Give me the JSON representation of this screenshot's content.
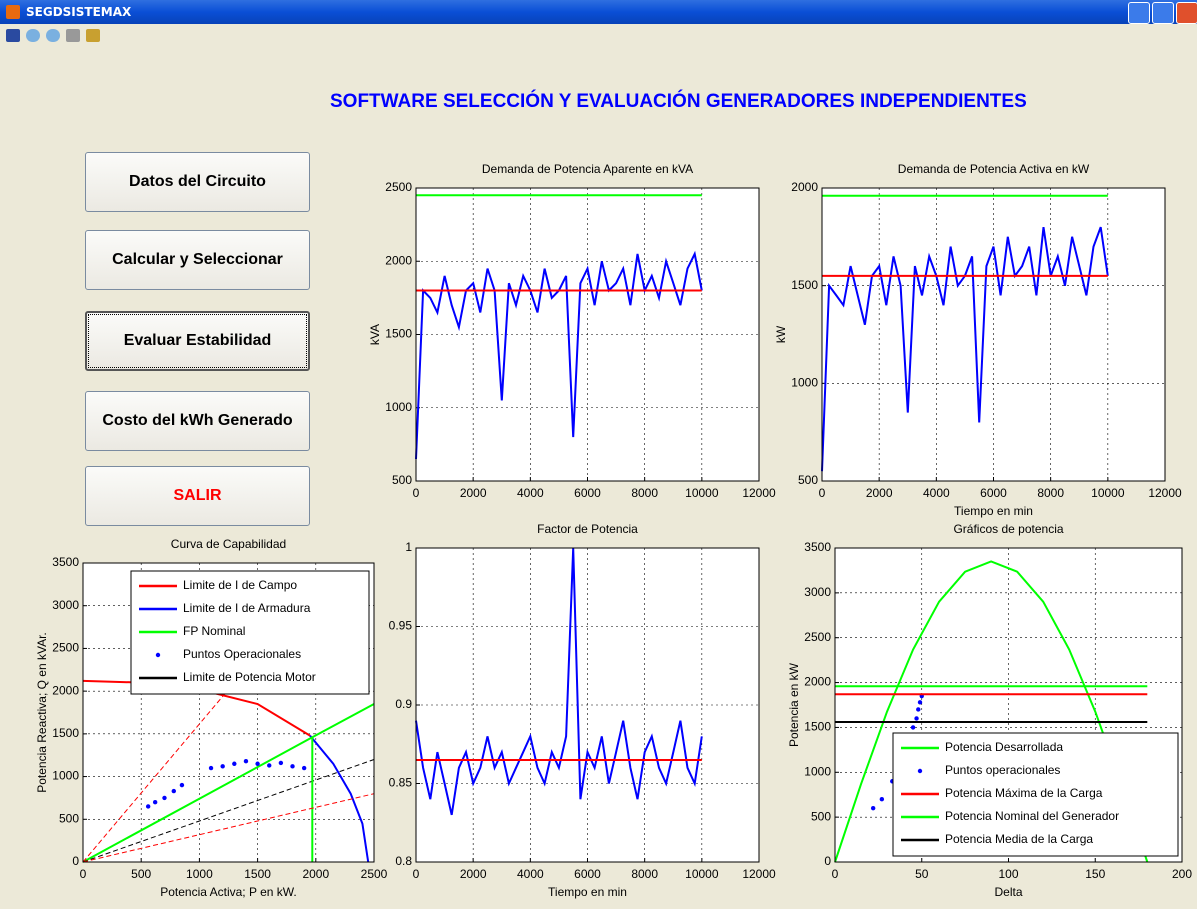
{
  "window": {
    "title": "SEGDSISTEMAX"
  },
  "title": "SOFTWARE SELECCIÓN Y EVALUACIÓN GENERADORES INDEPENDIENTES",
  "buttons": [
    "Datos del Circuito",
    "Calcular y Seleccionar",
    "Evaluar Estabilidad",
    "Costo del kWh Generado",
    "SALIR"
  ],
  "chart_data": [
    {
      "type": "line",
      "title": "Demanda de Potencia Aparente en kVA",
      "ylabel": "kVA",
      "xlim": [
        0,
        12000
      ],
      "ylim": [
        500,
        2500
      ],
      "xticks": [
        0,
        2000,
        4000,
        6000,
        8000,
        10000,
        12000
      ],
      "yticks": [
        500,
        1000,
        1500,
        2000,
        2500
      ],
      "grid": true,
      "series": [
        {
          "color": "#0000ff",
          "x": [
            0,
            250,
            500,
            750,
            1000,
            1250,
            1500,
            1750,
            2000,
            2250,
            2500,
            2750,
            3000,
            3250,
            3500,
            3750,
            4000,
            4250,
            4500,
            4750,
            5000,
            5250,
            5500,
            5750,
            6000,
            6250,
            6500,
            6750,
            7000,
            7250,
            7500,
            7750,
            8000,
            8250,
            8500,
            8750,
            9000,
            9250,
            9500,
            9750,
            10000
          ],
          "values": [
            650,
            1800,
            1750,
            1650,
            1900,
            1700,
            1550,
            1800,
            1850,
            1650,
            1950,
            1800,
            1050,
            1850,
            1700,
            1900,
            1800,
            1650,
            1950,
            1750,
            1800,
            1900,
            800,
            1850,
            1950,
            1700,
            2000,
            1800,
            1850,
            1950,
            1700,
            2050,
            1800,
            1900,
            1750,
            2000,
            1850,
            1700,
            1950,
            2050,
            1800
          ]
        },
        {
          "color": "#ff0000",
          "x": [
            0,
            10000
          ],
          "values": [
            1800,
            1800
          ]
        },
        {
          "color": "#00ff00",
          "x": [
            0,
            10000
          ],
          "values": [
            2450,
            2450
          ]
        }
      ]
    },
    {
      "type": "line",
      "title": "Demanda de Potencia Activa en kW",
      "ylabel": "kW",
      "xlabel": "Tiempo en min",
      "xlim": [
        0,
        12000
      ],
      "ylim": [
        500,
        2000
      ],
      "xticks": [
        0,
        2000,
        4000,
        6000,
        8000,
        10000,
        12000
      ],
      "yticks": [
        500,
        1000,
        1500,
        2000
      ],
      "grid": true,
      "series": [
        {
          "color": "#0000ff",
          "x": [
            0,
            250,
            500,
            750,
            1000,
            1250,
            1500,
            1750,
            2000,
            2250,
            2500,
            2750,
            3000,
            3250,
            3500,
            3750,
            4000,
            4250,
            4500,
            4750,
            5000,
            5250,
            5500,
            5750,
            6000,
            6250,
            6500,
            6750,
            7000,
            7250,
            7500,
            7750,
            8000,
            8250,
            8500,
            8750,
            9000,
            9250,
            9500,
            9750,
            10000
          ],
          "values": [
            550,
            1500,
            1450,
            1400,
            1600,
            1450,
            1300,
            1550,
            1600,
            1400,
            1650,
            1500,
            850,
            1600,
            1450,
            1650,
            1550,
            1400,
            1700,
            1500,
            1550,
            1650,
            800,
            1600,
            1700,
            1450,
            1750,
            1550,
            1600,
            1700,
            1450,
            1800,
            1550,
            1650,
            1500,
            1750,
            1600,
            1450,
            1700,
            1800,
            1550
          ]
        },
        {
          "color": "#ff0000",
          "x": [
            0,
            10000
          ],
          "values": [
            1550,
            1550
          ]
        },
        {
          "color": "#00ff00",
          "x": [
            0,
            10000
          ],
          "values": [
            1960,
            1960
          ]
        }
      ]
    },
    {
      "type": "line",
      "title": "Curva de Capabilidad",
      "xlabel": "Potencia Activa; P en kW.",
      "ylabel": "Potencia Reactiva; Q en kVAr.",
      "xlim": [
        0,
        2500
      ],
      "ylim": [
        0,
        3500
      ],
      "xticks": [
        0,
        500,
        1000,
        1500,
        2000,
        2500
      ],
      "yticks": [
        0,
        500,
        1000,
        1500,
        2000,
        2500,
        3000,
        3500
      ],
      "grid": true,
      "legend": "upper left",
      "series": [
        {
          "name": "Limite de I de Campo",
          "color": "#ff0000",
          "x": [
            0,
            500,
            1000,
            1500,
            1950
          ],
          "values": [
            2120,
            2100,
            2020,
            1850,
            1480
          ]
        },
        {
          "name": "Limite de I de Armadura",
          "color": "#0000ff",
          "x": [
            1950,
            2150,
            2300,
            2400,
            2450
          ],
          "values": [
            1480,
            1150,
            800,
            450,
            0
          ]
        },
        {
          "name": "FP Nominal",
          "color": "#00ff00",
          "x": [
            0,
            1970,
            2500
          ],
          "values": [
            0,
            1460,
            1850
          ]
        },
        {
          "name": "Puntos Operacionales",
          "color": "#0000ff",
          "markers": true,
          "x": [
            560,
            620,
            700,
            780,
            850,
            1100,
            1200,
            1300,
            1400,
            1500,
            1600,
            1700,
            1800,
            1900
          ],
          "values": [
            650,
            700,
            750,
            830,
            900,
            1100,
            1120,
            1150,
            1180,
            1150,
            1130,
            1160,
            1120,
            1100
          ]
        },
        {
          "name": "Limite de Potencia Motor",
          "color": "#000000",
          "dashed": true,
          "x": [
            0,
            2500
          ],
          "values": [
            0,
            1200
          ]
        },
        {
          "color": "#00ff00",
          "x": [
            1970,
            1970
          ],
          "values": [
            0,
            1460
          ]
        },
        {
          "color": "#ff0000",
          "dashed": true,
          "x": [
            0,
            1300
          ],
          "values": [
            0,
            2100
          ]
        },
        {
          "color": "#ff0000",
          "dashed": true,
          "x": [
            0,
            2500
          ],
          "values": [
            0,
            800
          ]
        }
      ]
    },
    {
      "type": "line",
      "title": "Factor de Potencia",
      "xlabel": "Tiempo en min",
      "xlim": [
        0,
        12000
      ],
      "ylim": [
        0.8,
        1
      ],
      "xticks": [
        0,
        2000,
        4000,
        6000,
        8000,
        10000,
        12000
      ],
      "yticks": [
        0.8,
        0.85,
        0.9,
        0.95,
        1
      ],
      "grid": true,
      "series": [
        {
          "color": "#0000ff",
          "x": [
            0,
            250,
            500,
            750,
            1000,
            1250,
            1500,
            1750,
            2000,
            2250,
            2500,
            2750,
            3000,
            3250,
            3500,
            3750,
            4000,
            4250,
            4500,
            4750,
            5000,
            5250,
            5500,
            5750,
            6000,
            6250,
            6500,
            6750,
            7000,
            7250,
            7500,
            7750,
            8000,
            8250,
            8500,
            8750,
            9000,
            9250,
            9500,
            9750,
            10000
          ],
          "values": [
            0.89,
            0.86,
            0.84,
            0.87,
            0.85,
            0.83,
            0.86,
            0.87,
            0.85,
            0.86,
            0.88,
            0.86,
            0.87,
            0.85,
            0.86,
            0.87,
            0.88,
            0.86,
            0.85,
            0.87,
            0.86,
            0.88,
            1,
            0.84,
            0.87,
            0.86,
            0.88,
            0.85,
            0.87,
            0.89,
            0.86,
            0.84,
            0.87,
            0.88,
            0.86,
            0.85,
            0.87,
            0.89,
            0.86,
            0.85,
            0.88
          ]
        },
        {
          "color": "#ff0000",
          "x": [
            0,
            10000
          ],
          "values": [
            0.865,
            0.865
          ]
        }
      ]
    },
    {
      "type": "line",
      "title": "Gráficos de potencia",
      "xlabel": "Delta",
      "ylabel": "Potencia en kW",
      "xlim": [
        0,
        200
      ],
      "ylim": [
        0,
        3500
      ],
      "xticks": [
        0,
        50,
        100,
        150,
        200
      ],
      "yticks": [
        0,
        500,
        1000,
        1500,
        2000,
        2500,
        3000,
        3500
      ],
      "grid": true,
      "legend": "lower right",
      "series": [
        {
          "name": "Potencia Desarrollada",
          "color": "#00ff00",
          "x": [
            0,
            15,
            30,
            45,
            60,
            75,
            90,
            105,
            120,
            135,
            150,
            165,
            180
          ],
          "values": [
            0,
            867,
            1675,
            2369,
            2901,
            3236,
            3350,
            3236,
            2901,
            2369,
            1675,
            867,
            0
          ]
        },
        {
          "name": "Puntos operacionales",
          "color": "#0000ff",
          "markers": true,
          "x": [
            22,
            27,
            33,
            38,
            42,
            45,
            47,
            48,
            49,
            50
          ],
          "values": [
            600,
            700,
            900,
            1150,
            1350,
            1500,
            1600,
            1700,
            1780,
            1850
          ]
        },
        {
          "name": "Potencia Máxima de la Carga",
          "color": "#ff0000",
          "x": [
            0,
            180
          ],
          "values": [
            1870,
            1870
          ]
        },
        {
          "name": "Potencia Nominal del Generador",
          "color": "#00ff00",
          "x": [
            0,
            180
          ],
          "values": [
            1960,
            1960
          ]
        },
        {
          "name": "Potencia Media de la Carga",
          "color": "#000000",
          "x": [
            0,
            180
          ],
          "values": [
            1560,
            1560
          ]
        }
      ]
    }
  ]
}
